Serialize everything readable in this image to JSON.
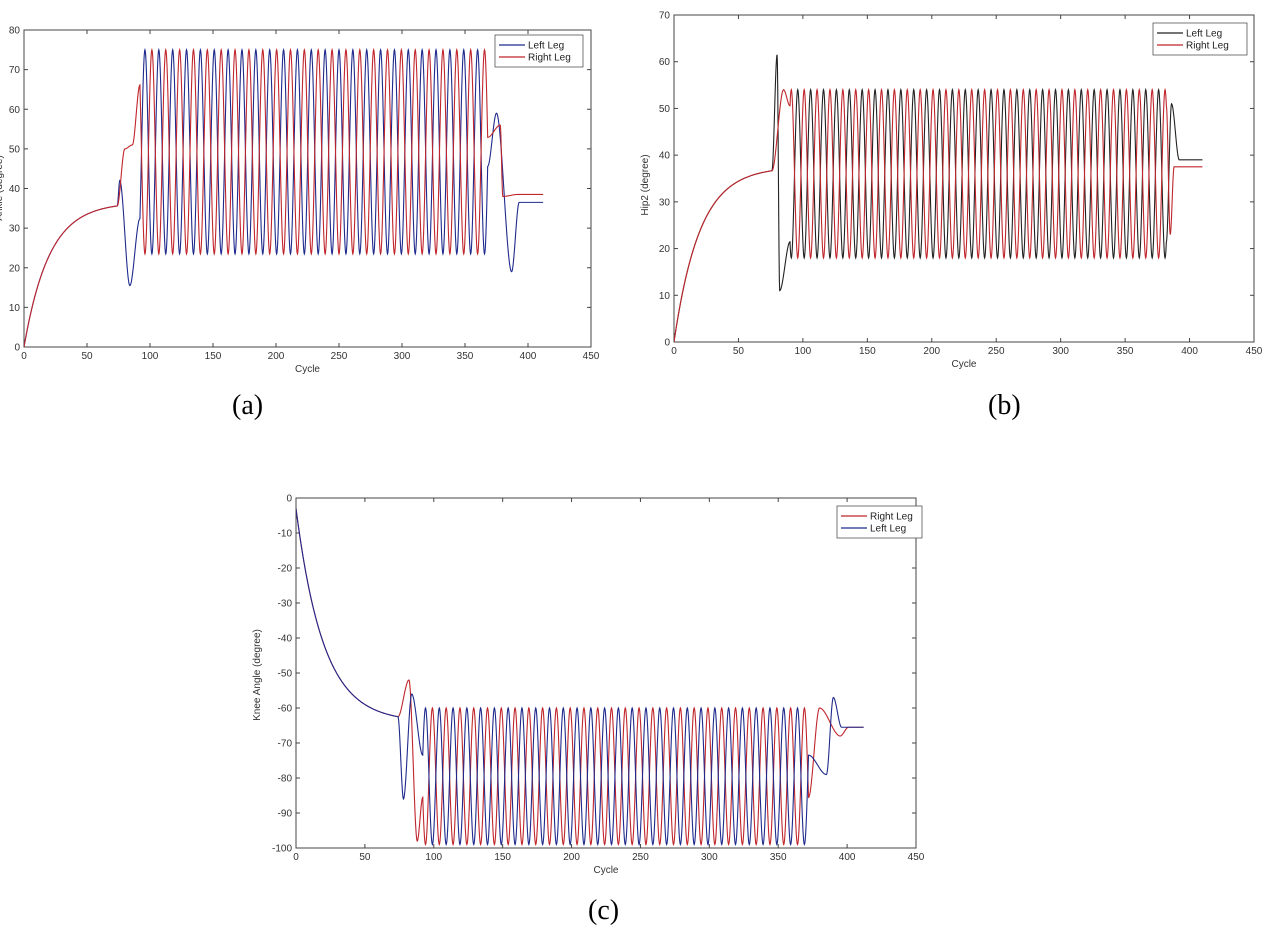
{
  "chart_data": [
    {
      "type": "line",
      "panel_label": "(a)",
      "ylabel": "Ankle (degree)",
      "xlabel": "Cycle",
      "xlim": [
        0,
        450
      ],
      "ylim": [
        0,
        80
      ],
      "xticks": [
        "0",
        "50",
        "100",
        "150",
        "200",
        "250",
        "300",
        "350",
        "400",
        "450"
      ],
      "yticks": [
        "0",
        "10",
        "20",
        "30",
        "40",
        "50",
        "60",
        "70",
        "80"
      ],
      "legend_position": "top-right",
      "series": [
        {
          "name": "Left Leg",
          "color": "#1f2a8c"
        },
        {
          "name": "Right Leg",
          "color": "#c0262c"
        }
      ],
      "curve": {
        "x0": 0,
        "x1": 412,
        "start": 0,
        "approach_level": 36.5,
        "osc_start": 74,
        "transient_end": 92,
        "osc_end": 368,
        "period": 11,
        "osc_min": 23.5,
        "osc_max": 75,
        "left_final": 36.5,
        "right_final": 38.5,
        "left_extremes": [
          [
            76,
            42
          ],
          [
            84,
            15.5
          ],
          [
            375,
            59
          ],
          [
            387,
            19
          ]
        ],
        "right_extremes": [
          [
            80,
            50
          ],
          [
            86,
            51
          ],
          [
            378,
            56
          ],
          [
            380,
            38
          ]
        ]
      }
    },
    {
      "type": "line",
      "panel_label": "(b)",
      "ylabel": "Hip2 (degree)",
      "xlabel": "Cycle",
      "xlim": [
        0,
        450
      ],
      "ylim": [
        0,
        70
      ],
      "xticks": [
        "0",
        "50",
        "100",
        "150",
        "200",
        "250",
        "300",
        "350",
        "400",
        "450"
      ],
      "yticks": [
        "0",
        "10",
        "20",
        "30",
        "40",
        "50",
        "60",
        "70"
      ],
      "legend_position": "top-right",
      "series": [
        {
          "name": "Left Leg",
          "color": "#222222"
        },
        {
          "name": "Right Leg",
          "color": "#c0262c"
        }
      ],
      "curve": {
        "x0": 0,
        "x1": 410,
        "start": 0,
        "approach_level": 37.5,
        "osc_start": 76,
        "transient_end": 90,
        "osc_end": 382,
        "period": 10,
        "osc_min": 18,
        "osc_max": 54,
        "left_final": 39,
        "right_final": 37.5,
        "left_extremes": [
          [
            80,
            61.5
          ],
          [
            82,
            11
          ],
          [
            386,
            51
          ],
          [
            392,
            39
          ]
        ],
        "right_extremes": [
          [
            85,
            54
          ],
          [
            385,
            23
          ],
          [
            388,
            37.5
          ]
        ]
      }
    },
    {
      "type": "line",
      "panel_label": "(c)",
      "ylabel": "Knee Angle (degree)",
      "xlabel": "Cycle",
      "xlim": [
        0,
        450
      ],
      "ylim": [
        -100,
        0
      ],
      "xticks": [
        "0",
        "50",
        "100",
        "150",
        "200",
        "250",
        "300",
        "350",
        "400",
        "450"
      ],
      "yticks": [
        "0",
        "-10",
        "-20",
        "-30",
        "-40",
        "-50",
        "-60",
        "-70",
        "-80",
        "-90",
        "-100"
      ],
      "legend_position": "top-right",
      "series": [
        {
          "name": "Right Leg",
          "color": "#c0262c"
        },
        {
          "name": "Left Leg",
          "color": "#1f2a8c"
        }
      ],
      "curve": {
        "x0": 0,
        "x1": 412,
        "start": -3,
        "approach_level": -64,
        "osc_start": 74,
        "transient_end": 92,
        "osc_end": 372,
        "period": 10,
        "osc_min": -99,
        "osc_max": -60,
        "left_final": -65.5,
        "right_final": -65.5,
        "left_extremes": [
          [
            78,
            -86
          ],
          [
            84,
            -56
          ],
          [
            385,
            -79
          ],
          [
            390,
            -57
          ]
        ],
        "right_extremes": [
          [
            82,
            -52
          ],
          [
            88,
            -98
          ],
          [
            380,
            -60
          ],
          [
            395,
            -68
          ]
        ]
      }
    }
  ]
}
